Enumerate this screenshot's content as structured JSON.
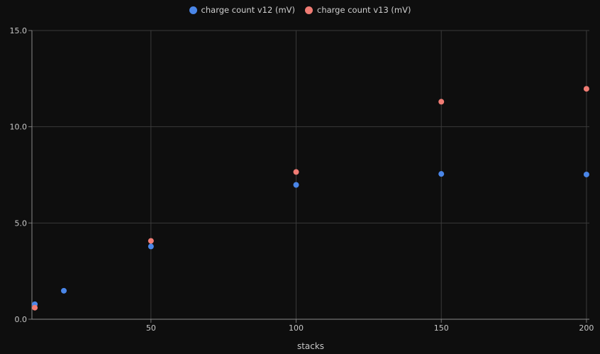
{
  "chart_data": {
    "type": "scatter",
    "xlabel": "stacks",
    "ylabel": "",
    "xlim": [
      9,
      201
    ],
    "ylim": [
      0,
      15
    ],
    "x_ticks": [
      50,
      100,
      150,
      200
    ],
    "y_ticks": [
      0,
      5,
      10,
      15
    ],
    "y_tick_labels": [
      "0.0",
      "5.0",
      "10.0",
      "15.0"
    ],
    "grid": true,
    "legend_position": "top-center",
    "series": [
      {
        "name": "charge count v12 (mV)",
        "color": "#4a86e8",
        "points": [
          {
            "x": 10,
            "y": 0.78
          },
          {
            "x": 20,
            "y": 1.48
          },
          {
            "x": 50,
            "y": 3.78
          },
          {
            "x": 100,
            "y": 6.98
          },
          {
            "x": 150,
            "y": 7.55
          },
          {
            "x": 200,
            "y": 7.52
          }
        ]
      },
      {
        "name": "charge count v13 (mV)",
        "color": "#f07c74",
        "points": [
          {
            "x": 10,
            "y": 0.6
          },
          {
            "x": 50,
            "y": 4.07
          },
          {
            "x": 100,
            "y": 7.65
          },
          {
            "x": 150,
            "y": 11.3
          },
          {
            "x": 200,
            "y": 11.97
          }
        ]
      }
    ]
  }
}
